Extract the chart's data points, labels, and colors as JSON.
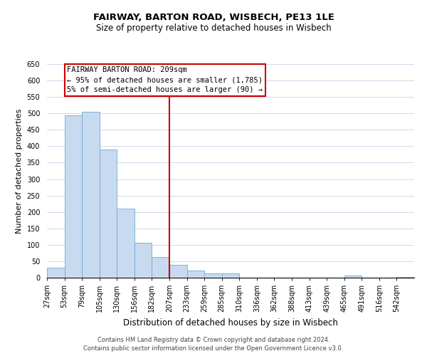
{
  "title": "FAIRWAY, BARTON ROAD, WISBECH, PE13 1LE",
  "subtitle": "Size of property relative to detached houses in Wisbech",
  "xlabel": "Distribution of detached houses by size in Wisbech",
  "ylabel": "Number of detached properties",
  "footer_line1": "Contains HM Land Registry data © Crown copyright and database right 2024.",
  "footer_line2": "Contains public sector information licensed under the Open Government Licence v3.0.",
  "bin_labels": [
    "27sqm",
    "53sqm",
    "79sqm",
    "105sqm",
    "130sqm",
    "156sqm",
    "182sqm",
    "207sqm",
    "233sqm",
    "259sqm",
    "285sqm",
    "310sqm",
    "336sqm",
    "362sqm",
    "388sqm",
    "413sqm",
    "439sqm",
    "465sqm",
    "491sqm",
    "516sqm",
    "542sqm"
  ],
  "bar_values": [
    30,
    493,
    505,
    390,
    210,
    107,
    62,
    40,
    22,
    13,
    12,
    0,
    0,
    0,
    0,
    0,
    0,
    6,
    0,
    0,
    3
  ],
  "bar_color": "#c8daf0",
  "bar_edge_color": "#6fa8d6",
  "ylim_min": 0,
  "ylim_max": 650,
  "yticks": [
    0,
    50,
    100,
    150,
    200,
    250,
    300,
    350,
    400,
    450,
    500,
    550,
    600,
    650
  ],
  "red_line_x": 7,
  "annotation_title": "FAIRWAY BARTON ROAD: 209sqm",
  "annotation_line1": "← 95% of detached houses are smaller (1,785)",
  "annotation_line2": "5% of semi-detached houses are larger (90) →",
  "annotation_box_facecolor": "#ffffff",
  "annotation_box_edgecolor": "#cc0000",
  "red_line_color": "#cc0000",
  "title_fontsize": 9.5,
  "subtitle_fontsize": 8.5,
  "xlabel_fontsize": 8.5,
  "ylabel_fontsize": 8,
  "tick_fontsize": 7,
  "annot_fontsize": 7.5,
  "footer_fontsize": 6.0,
  "grid_color": "#c5d5e8"
}
